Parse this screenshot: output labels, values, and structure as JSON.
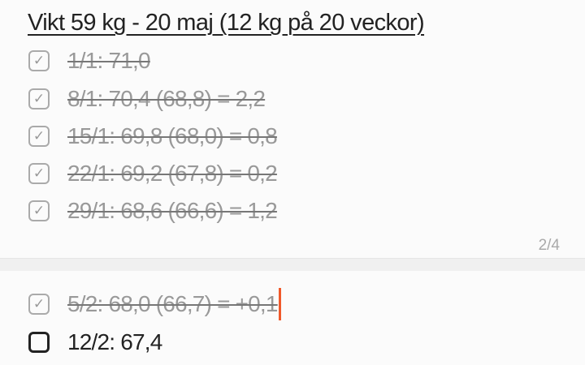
{
  "note1": {
    "title": "Vikt 59 kg - 20 maj (12 kg på 20 veckor)",
    "items": [
      {
        "text": "1/1: 71,0",
        "checked": true
      },
      {
        "text": "8/1: 70,4 (68,8) = 2,2",
        "checked": true
      },
      {
        "text": "15/1: 69,8 (68,0) = 0,8",
        "checked": true
      },
      {
        "text": "22/1: 69,2 (67,8) = 0,2",
        "checked": true
      },
      {
        "text": "29/1: 68,6 (66,6) = 1,2",
        "checked": true
      }
    ],
    "page_indicator": "2/4"
  },
  "note2": {
    "items": [
      {
        "text": "5/2: 68,0 (66,7) = +0,1",
        "checked": true
      },
      {
        "text": "12/2: 67,4",
        "checked": false
      }
    ]
  },
  "colors": {
    "caret": "#f0592a",
    "checked_text": "#999999"
  },
  "icons": {
    "checked": "checkbox-checked-icon",
    "unchecked": "checkbox-empty-icon"
  }
}
